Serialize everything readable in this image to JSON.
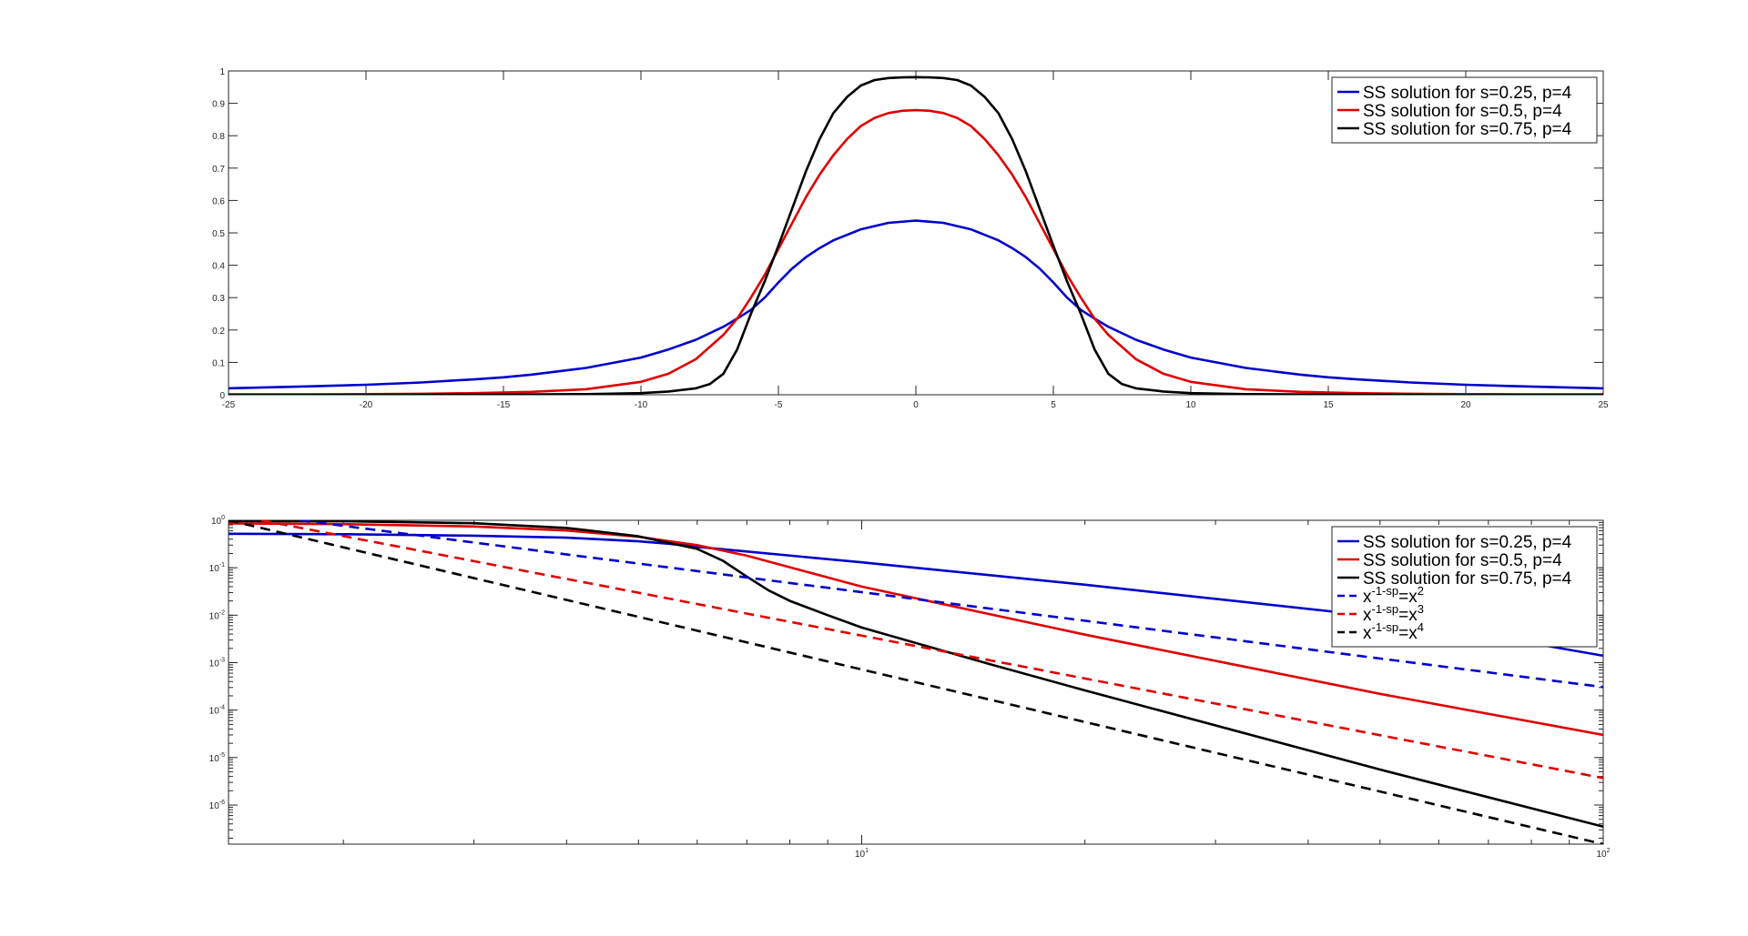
{
  "chart_data": [
    {
      "type": "line",
      "title": "",
      "xlabel": "",
      "ylabel": "",
      "xlim": [
        -25,
        25
      ],
      "ylim": [
        0,
        1
      ],
      "x_ticks": [
        -25,
        -20,
        -15,
        -10,
        -5,
        0,
        5,
        10,
        15,
        20,
        25
      ],
      "x_tick_labels": [
        "-25",
        "-20",
        "-15",
        "-10",
        "-5",
        "0",
        "5",
        "10",
        "15",
        "20",
        "25"
      ],
      "y_ticks": [
        0,
        0.1,
        0.2,
        0.3,
        0.4,
        0.5,
        0.6,
        0.7,
        0.8,
        0.9,
        1
      ],
      "y_tick_labels": [
        "0",
        "0.1",
        "0.2",
        "0.3",
        "0.4",
        "0.5",
        "0.6",
        "0.7",
        "0.8",
        "0.9",
        "1"
      ],
      "grid": false,
      "legend_position": "top-right",
      "series": [
        {
          "name": "SS solution for s=0.25, p=4",
          "color": "#0000cc",
          "dash": "solid",
          "x": [
            -25,
            -22,
            -20,
            -18,
            -16,
            -15,
            -14,
            -12,
            -10,
            -9,
            -8,
            -7,
            -6.5,
            -6,
            -5.5,
            -5,
            -4.5,
            -4,
            -3.5,
            -3,
            -2,
            -1,
            0,
            1,
            2,
            3,
            3.5,
            4,
            4.5,
            5,
            5.5,
            6,
            6.5,
            7,
            8,
            9,
            10,
            12,
            14,
            15,
            16,
            18,
            20,
            22,
            25
          ],
          "y": [
            0.02,
            0.026,
            0.031,
            0.038,
            0.048,
            0.054,
            0.062,
            0.083,
            0.115,
            0.14,
            0.17,
            0.21,
            0.235,
            0.262,
            0.3,
            0.347,
            0.39,
            0.425,
            0.453,
            0.477,
            0.511,
            0.531,
            0.538,
            0.531,
            0.511,
            0.477,
            0.453,
            0.425,
            0.39,
            0.347,
            0.3,
            0.262,
            0.235,
            0.21,
            0.17,
            0.14,
            0.115,
            0.083,
            0.062,
            0.054,
            0.048,
            0.038,
            0.031,
            0.026,
            0.02
          ]
        },
        {
          "name": "SS solution for s=0.5, p=4",
          "color": "#e00000",
          "dash": "solid",
          "x": [
            -25,
            -22,
            -20,
            -18,
            -16,
            -14,
            -12,
            -10,
            -9,
            -8,
            -7,
            -6.5,
            -6,
            -5.5,
            -5,
            -4.5,
            -4,
            -3.5,
            -3,
            -2.5,
            -2,
            -1.5,
            -1,
            -0.5,
            0,
            0.5,
            1,
            1.5,
            2,
            2.5,
            3,
            3.5,
            4,
            4.5,
            5,
            5.5,
            6,
            6.5,
            7,
            8,
            9,
            10,
            12,
            14,
            16,
            18,
            20,
            22,
            25
          ],
          "y": [
            0.001,
            0.0015,
            0.002,
            0.003,
            0.005,
            0.009,
            0.017,
            0.04,
            0.065,
            0.11,
            0.185,
            0.235,
            0.3,
            0.37,
            0.45,
            0.53,
            0.61,
            0.68,
            0.74,
            0.79,
            0.83,
            0.855,
            0.87,
            0.877,
            0.879,
            0.877,
            0.87,
            0.855,
            0.83,
            0.79,
            0.74,
            0.68,
            0.61,
            0.53,
            0.45,
            0.37,
            0.3,
            0.235,
            0.185,
            0.11,
            0.065,
            0.04,
            0.017,
            0.009,
            0.005,
            0.003,
            0.002,
            0.0015,
            0.001
          ]
        },
        {
          "name": "SS solution for s=0.75, p=4",
          "color": "#000000",
          "dash": "solid",
          "x": [
            -25,
            -20,
            -15,
            -12,
            -10,
            -9,
            -8,
            -7.5,
            -7,
            -6.5,
            -6,
            -5.5,
            -5,
            -4.5,
            -4,
            -3.5,
            -3,
            -2.5,
            -2,
            -1.5,
            -1,
            -0.5,
            0,
            0.5,
            1,
            1.5,
            2,
            2.5,
            3,
            3.5,
            4,
            4.5,
            5,
            5.5,
            6,
            6.5,
            7,
            7.5,
            8,
            9,
            10,
            12,
            15,
            20,
            25
          ],
          "y": [
            0,
            0,
            0.0005,
            0.002,
            0.005,
            0.01,
            0.02,
            0.033,
            0.065,
            0.14,
            0.25,
            0.35,
            0.46,
            0.575,
            0.69,
            0.79,
            0.87,
            0.92,
            0.955,
            0.972,
            0.978,
            0.98,
            0.981,
            0.98,
            0.978,
            0.972,
            0.955,
            0.92,
            0.87,
            0.79,
            0.69,
            0.575,
            0.46,
            0.35,
            0.25,
            0.14,
            0.065,
            0.033,
            0.02,
            0.01,
            0.005,
            0.002,
            0.0005,
            0,
            0
          ]
        }
      ]
    },
    {
      "type": "line",
      "title": "",
      "xlabel": "",
      "ylabel": "",
      "x_scale": "log",
      "y_scale": "log",
      "xlim": [
        1.4,
        100
      ],
      "ylim": [
        1.5e-07,
        1
      ],
      "x_ticks": [
        10,
        100
      ],
      "x_tick_labels": [
        {
          "base": "10",
          "exp": "1"
        },
        {
          "base": "10",
          "exp": "2"
        }
      ],
      "y_ticks": [
        1e-06,
        1e-05,
        0.0001,
        0.001,
        0.01,
        0.1,
        1
      ],
      "y_tick_labels": [
        {
          "base": "10",
          "exp": "-6"
        },
        {
          "base": "10",
          "exp": "-5"
        },
        {
          "base": "10",
          "exp": "-4"
        },
        {
          "base": "10",
          "exp": "-3"
        },
        {
          "base": "10",
          "exp": "-2"
        },
        {
          "base": "10",
          "exp": "-1"
        },
        {
          "base": "10",
          "exp": "0"
        }
      ],
      "grid": false,
      "legend_position": "top-right",
      "series": [
        {
          "name": "SS solution for s=0.25, p=4",
          "color": "#0000cc",
          "dash": "solid",
          "x": [
            1.4,
            2,
            3,
            4,
            5,
            5.5,
            6,
            7,
            10,
            20,
            50,
            100
          ],
          "y": [
            0.52,
            0.51,
            0.475,
            0.43,
            0.36,
            0.32,
            0.275,
            0.22,
            0.13,
            0.044,
            0.0093,
            0.0014
          ]
        },
        {
          "name": "SS solution for s=0.5, p=4",
          "color": "#e00000",
          "dash": "solid",
          "x": [
            1.4,
            2,
            3,
            4,
            5,
            6,
            7,
            10,
            20,
            50,
            100
          ],
          "y": [
            0.86,
            0.83,
            0.74,
            0.61,
            0.45,
            0.3,
            0.18,
            0.04,
            0.0039,
            0.00022,
            3e-05
          ]
        },
        {
          "name": "SS solution for s=0.75, p=4",
          "color": "#000000",
          "dash": "solid",
          "x": [
            1.4,
            2,
            3,
            4,
            5,
            6,
            6.5,
            7,
            7.5,
            8,
            9,
            10,
            15,
            20,
            50,
            100
          ],
          "y": [
            0.96,
            0.955,
            0.87,
            0.69,
            0.46,
            0.25,
            0.14,
            0.065,
            0.033,
            0.02,
            0.01,
            0.0055,
            0.0009,
            0.00026,
            5.6e-06,
            3.5e-07
          ]
        },
        {
          "name": "x^-1-sp = x^2",
          "color": "#0000cc",
          "dash": "dashed",
          "x": [
            1.75,
            100
          ],
          "y": [
            1,
            0.000306
          ]
        },
        {
          "name": "x^-1-sp = x^3",
          "color": "#e00000",
          "dash": "dashed",
          "x": [
            1.55,
            100
          ],
          "y": [
            1,
            3.7e-06
          ]
        },
        {
          "name": "x^-1-sp = x^4",
          "color": "#000000",
          "dash": "dashed",
          "x": [
            1.4,
            100
          ],
          "y": [
            1,
            1.5e-07
          ]
        }
      ]
    }
  ],
  "legends": [
    {
      "entries": [
        {
          "text": "SS solution for s=0.25, p=4",
          "color": "#0000cc",
          "dash": "solid"
        },
        {
          "text": "SS solution for s=0.5, p=4",
          "color": "#e00000",
          "dash": "solid"
        },
        {
          "text": "SS solution for s=0.75, p=4",
          "color": "#000000",
          "dash": "solid"
        }
      ]
    },
    {
      "entries": [
        {
          "text": "SS solution for s=0.25, p=4",
          "color": "#0000cc",
          "dash": "solid"
        },
        {
          "text": "SS solution for s=0.5, p=4",
          "color": "#e00000",
          "dash": "solid"
        },
        {
          "text": "SS solution for s=0.75, p=4",
          "color": "#000000",
          "dash": "solid"
        },
        {
          "base": "x",
          "exp": "-1-sp",
          "tail": "=x",
          "tail_exp": "2",
          "color": "#0000cc",
          "dash": "dashed"
        },
        {
          "base": "x",
          "exp": "-1-sp",
          "tail": "=x",
          "tail_exp": "3",
          "color": "#e00000",
          "dash": "dashed"
        },
        {
          "base": "x",
          "exp": "-1-sp",
          "tail": "=x",
          "tail_exp": "4",
          "color": "#000000",
          "dash": "dashed"
        }
      ]
    }
  ]
}
